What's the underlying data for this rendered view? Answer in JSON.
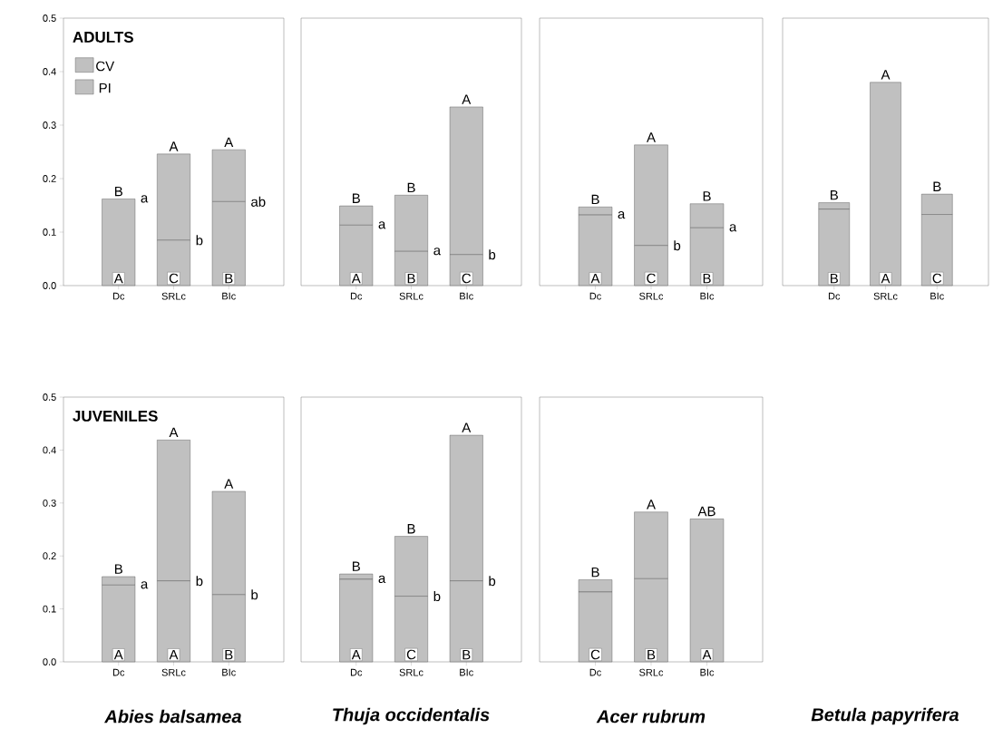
{
  "chart_data": [
    {
      "type": "bar",
      "stacked": true,
      "title": "ADULTS",
      "categories": [
        "Dc",
        "SRLc",
        "BIc"
      ],
      "ylim": [
        0,
        0.5
      ],
      "yticks": [
        {
          "value": 0,
          "label": "0.0"
        },
        0.1,
        0.2,
        0.3,
        0.4,
        0.5
      ],
      "legend": "top left",
      "series": [
        {
          "name": "PI",
          "color": "#c0c0c0",
          "values": [
            0.162,
            0.085,
            0.157
          ],
          "value_labels": [
            "A",
            "C",
            "B"
          ]
        },
        {
          "name": "CV",
          "color": "#c0c0c0",
          "values": [
            0.0,
            0.161,
            0.097
          ],
          "value_labels": [
            "B",
            "A",
            "A"
          ]
        }
      ],
      "annotations": [
        {
          "text": "a",
          "x": "Dc",
          "y": 0.162
        },
        {
          "text": "b",
          "x": "SRLc",
          "y": 0.085
        },
        {
          "text": "ab",
          "x": "BIc",
          "y": 0.157
        }
      ]
    },
    {
      "type": "bar",
      "stacked": true,
      "categories": [
        "Dc",
        "SRLc",
        "BIc"
      ],
      "ylim": [
        0,
        0.5
      ],
      "tick_labels": "x",
      "series": [
        {
          "color": "#c0c0c0",
          "values": [
            0.113,
            0.064,
            0.058
          ],
          "value_labels": [
            "A",
            "B",
            "C"
          ]
        },
        {
          "color": "#c0c0c0",
          "values": [
            0.036,
            0.105,
            0.276
          ],
          "value_labels": [
            "B",
            "B",
            "A"
          ]
        }
      ],
      "annotations": [
        {
          "text": "a",
          "x": "Dc",
          "y": 0.113
        },
        {
          "text": "a",
          "x": "SRLc",
          "y": 0.064
        },
        {
          "text": "b",
          "x": "BIc",
          "y": 0.058
        }
      ]
    },
    {
      "type": "bar",
      "stacked": true,
      "categories": [
        "Dc",
        "SRLc",
        "BIc"
      ],
      "ylim": [
        0,
        0.5
      ],
      "tick_labels": "x",
      "series": [
        {
          "color": "#c0c0c0",
          "values": [
            0.132,
            0.075,
            0.108
          ],
          "value_labels": [
            "A",
            "C",
            "B"
          ]
        },
        {
          "color": "#c0c0c0",
          "values": [
            0.015,
            0.188,
            0.045
          ],
          "value_labels": [
            "B",
            "A",
            "B"
          ]
        }
      ],
      "annotations": [
        {
          "text": "a",
          "x": "Dc",
          "y": 0.132
        },
        {
          "text": "b",
          "x": "SRLc",
          "y": 0.075
        },
        {
          "text": "a",
          "x": "BIc",
          "y": 0.108
        }
      ]
    },
    {
      "type": "bar",
      "stacked": true,
      "xlabel": "Betula papyrifera",
      "categories": [
        "Dc",
        "SRLc",
        "BIc"
      ],
      "ylim": [
        0,
        0.5
      ],
      "tick_labels": "x",
      "series": [
        {
          "color": "#c0c0c0",
          "values": [
            0.143,
            0.38,
            0.133
          ],
          "value_labels": [
            "B",
            "A",
            "C"
          ]
        },
        {
          "color": "#c0c0c0",
          "values": [
            0.012,
            0.0,
            0.038
          ],
          "value_labels": [
            "B",
            "A",
            "B"
          ]
        }
      ]
    },
    {
      "type": "bar",
      "stacked": true,
      "title": "JUVENILES",
      "xlabel": "Abies balsamea",
      "categories": [
        "Dc",
        "SRLc",
        "BIc"
      ],
      "ylim": [
        0,
        0.5
      ],
      "yticks": [
        {
          "value": 0,
          "label": "0.0"
        },
        0.1,
        0.2,
        0.3,
        0.4,
        0.5
      ],
      "series": [
        {
          "color": "#c0c0c0",
          "values": [
            0.145,
            0.153,
            0.127
          ],
          "value_labels": [
            "A",
            "A",
            "B"
          ]
        },
        {
          "color": "#c0c0c0",
          "values": [
            0.016,
            0.266,
            0.195
          ],
          "value_labels": [
            "B",
            "A",
            "A"
          ]
        }
      ],
      "annotations": [
        {
          "text": "a",
          "x": "Dc",
          "y": 0.145
        },
        {
          "text": "b",
          "x": "SRLc",
          "y": 0.153
        },
        {
          "text": "b",
          "x": "BIc",
          "y": 0.127
        }
      ]
    },
    {
      "type": "bar",
      "stacked": true,
      "xlabel": "Thuja occidentalis",
      "categories": [
        "Dc",
        "SRLc",
        "BIc"
      ],
      "ylim": [
        0,
        0.5
      ],
      "tick_labels": "x",
      "series": [
        {
          "color": "#c0c0c0",
          "values": [
            0.156,
            0.124,
            0.153
          ],
          "value_labels": [
            "A",
            "C",
            "B"
          ]
        },
        {
          "color": "#c0c0c0",
          "values": [
            0.01,
            0.113,
            0.275
          ],
          "value_labels": [
            "B",
            "B",
            "A"
          ]
        }
      ],
      "annotations": [
        {
          "text": "a",
          "x": "Dc",
          "y": 0.156
        },
        {
          "text": "b",
          "x": "SRLc",
          "y": 0.124
        },
        {
          "text": "b",
          "x": "BIc",
          "y": 0.153
        }
      ]
    },
    {
      "type": "bar",
      "stacked": true,
      "xlabel": "Acer rubrum",
      "categories": [
        "Dc",
        "SRLc",
        "BIc"
      ],
      "ylim": [
        0,
        0.5
      ],
      "tick_labels": "x",
      "series": [
        {
          "color": "#c0c0c0",
          "values": [
            0.132,
            0.157,
            0.27
          ],
          "value_labels": [
            "C",
            "B",
            "A"
          ]
        },
        {
          "color": "#c0c0c0",
          "values": [
            0.023,
            0.126,
            0.0
          ],
          "value_labels": [
            "B",
            "A",
            "AB"
          ]
        }
      ]
    }
  ]
}
